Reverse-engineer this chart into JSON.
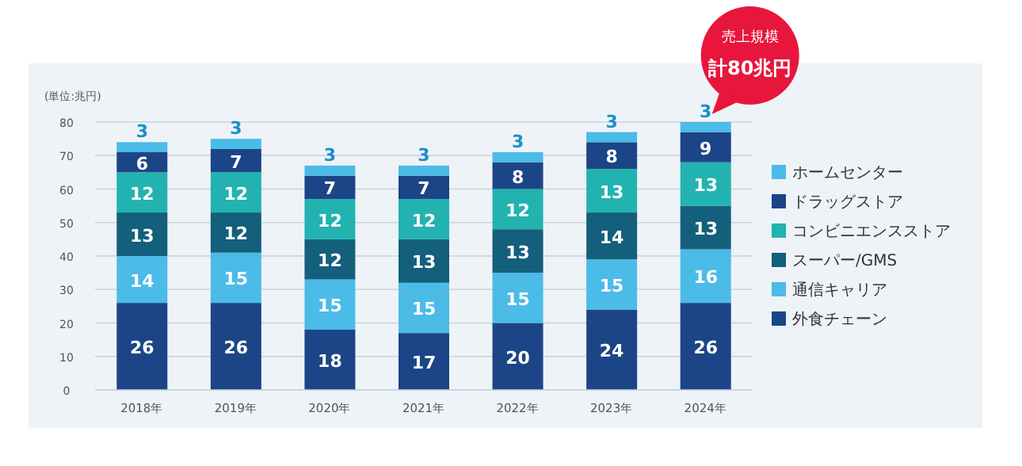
{
  "chart_data": {
    "type": "bar",
    "stacked": true,
    "ylabel": "(単位:兆円)",
    "categories": [
      "2018年",
      "2019年",
      "2020年",
      "2021年",
      "2022年",
      "2023年",
      "2024年"
    ],
    "series": [
      {
        "name": "外食チェーン",
        "color": "#1c4587",
        "values": [
          26,
          26,
          18,
          17,
          20,
          24,
          26
        ]
      },
      {
        "name": "通信キャリア",
        "color": "#4bbbe8",
        "values": [
          14,
          15,
          15,
          15,
          15,
          15,
          16
        ]
      },
      {
        "name": "スーパー/GMS",
        "color": "#145f7c",
        "values": [
          13,
          12,
          12,
          13,
          13,
          14,
          13
        ]
      },
      {
        "name": "コンビニエンスストア",
        "color": "#22b3b0",
        "values": [
          12,
          12,
          12,
          12,
          12,
          13,
          13
        ]
      },
      {
        "name": "ドラッグストア",
        "color": "#1c4587",
        "values": [
          6,
          7,
          7,
          7,
          8,
          8,
          9
        ]
      },
      {
        "name": "ホームセンター",
        "color": "#4bbbe8",
        "values": [
          3,
          3,
          3,
          3,
          3,
          3,
          3
        ]
      }
    ],
    "ylim": [
      0,
      80
    ],
    "yticks": [
      0,
      10,
      20,
      30,
      40,
      50,
      60,
      70,
      80
    ],
    "grid": "y",
    "legend": "right",
    "data_labels": true,
    "annotations": [
      "売上規模",
      "計80兆円"
    ]
  }
}
